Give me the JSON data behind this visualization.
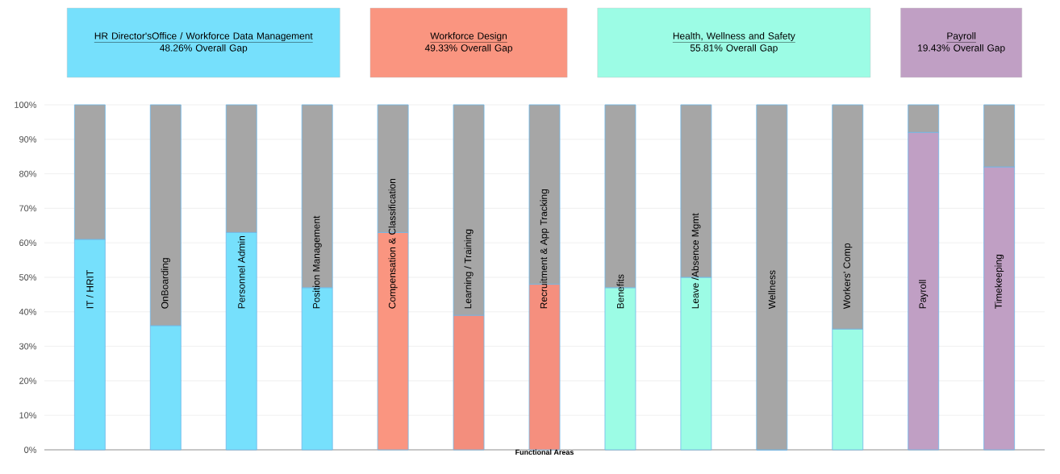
{
  "chart_data": {
    "type": "bar",
    "stacked": true,
    "xlabel": "Functional Areas",
    "categories": [
      "IT / HRIT",
      "OnBoarding",
      "Personnel Admin",
      "Position Management",
      "Compensation & Classification",
      "Learning  / Training",
      "Recruitment & App Tracking",
      "Benefits",
      "Leave /Absence Mgmt",
      "Wellness",
      "Workers' Comp",
      "Payroll",
      "Timekeeping"
    ],
    "series": [
      {
        "colors": [
          "#76e0fc",
          "#76e0fc",
          "#76e0fc",
          "#76e0fc",
          "#fa9580",
          "#f38e7d",
          "#f58f7e",
          "#9cfce5",
          "#9cfce5",
          "#9cfce5",
          "#9cfce5",
          "#c09fc4",
          "#c09fc4"
        ],
        "values": [
          61,
          36,
          63,
          47,
          63,
          39,
          48,
          47,
          50,
          0,
          35,
          92,
          82
        ]
      },
      {
        "color": "#a6a6a6",
        "values": [
          39,
          64,
          37,
          53,
          37,
          61,
          52,
          53,
          50,
          100,
          65,
          8,
          18
        ]
      }
    ],
    "ylim": [
      0,
      100
    ],
    "yticks": [
      {
        "value": 0,
        "label": "0%"
      },
      {
        "value": 10,
        "label": "10%"
      },
      {
        "value": 20,
        "label": "20%"
      },
      {
        "value": 30,
        "label": "30%"
      },
      {
        "value": 40,
        "label": "40%"
      },
      {
        "value": 50,
        "label": "50%"
      },
      {
        "value": 60,
        "label": "60%"
      },
      {
        "value": 70,
        "label": "70%"
      },
      {
        "value": 80,
        "label": "80%"
      },
      {
        "value": 90,
        "label": "90%"
      },
      {
        "value": 100,
        "label": "100%"
      }
    ],
    "grid": "y",
    "annotations": [
      "HR Director'sOffice / Workforce Data Management",
      "48.26%  Overall Gap",
      "Workforce Design",
      "49.33% Overall Gap",
      "Health, Wellness and Safety",
      "55.81% Overall Gap",
      "Payroll",
      "19.43% Overall Gap"
    ]
  }
}
